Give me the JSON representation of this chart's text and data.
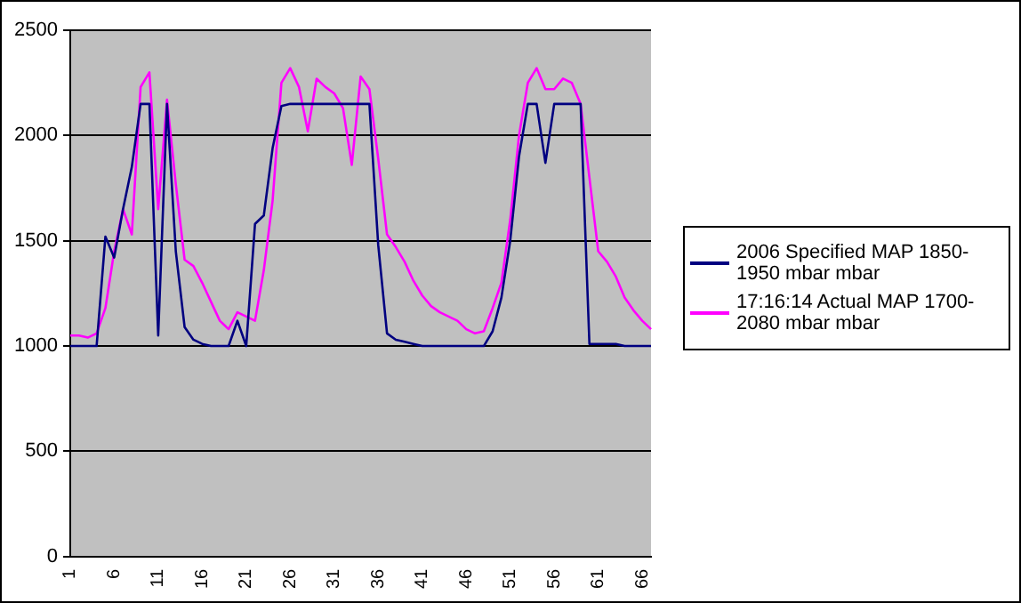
{
  "chart_data": {
    "type": "line",
    "categories": [
      "1",
      null,
      null,
      null,
      null,
      "6",
      null,
      null,
      null,
      null,
      "11",
      null,
      null,
      null,
      null,
      "16",
      null,
      null,
      null,
      null,
      "21",
      null,
      null,
      null,
      null,
      "26",
      null,
      null,
      null,
      null,
      "31",
      null,
      null,
      null,
      null,
      "36",
      null,
      null,
      null,
      null,
      "41",
      null,
      null,
      null,
      null,
      "46",
      null,
      null,
      null,
      null,
      "51",
      null,
      null,
      null,
      null,
      "56",
      null,
      null,
      null,
      null,
      "61",
      null,
      null,
      null,
      null,
      "66",
      null
    ],
    "series": [
      {
        "name": "2006 Specified MAP 1850-1950 mbar  mbar",
        "color": "#000080",
        "values": [
          1000,
          1000,
          1000,
          1000,
          1520,
          1420,
          1650,
          1850,
          2150,
          2150,
          1050,
          2150,
          1450,
          1090,
          1030,
          1010,
          1000,
          1000,
          1000,
          1120,
          1000,
          1580,
          1620,
          1940,
          2140,
          2150,
          2150,
          2150,
          2150,
          2150,
          2150,
          2150,
          2150,
          2150,
          2150,
          1480,
          1060,
          1030,
          1020,
          1010,
          1000,
          1000,
          1000,
          1000,
          1000,
          1000,
          1000,
          1000,
          1070,
          1230,
          1500,
          1900,
          2150,
          2150,
          1870,
          2150,
          2150,
          2150,
          2150,
          1010,
          1010,
          1010,
          1010,
          1000,
          1000,
          1000,
          1000
        ]
      },
      {
        "name": "17:16:14 Actual MAP 1700-2080 mbar  mbar",
        "color": "#ff00ff",
        "values": [
          1050,
          1050,
          1040,
          1060,
          1180,
          1450,
          1650,
          1530,
          2230,
          2300,
          1650,
          2170,
          1770,
          1410,
          1380,
          1300,
          1210,
          1120,
          1080,
          1160,
          1140,
          1120,
          1360,
          1690,
          2250,
          2320,
          2230,
          2020,
          2270,
          2230,
          2200,
          2130,
          1860,
          2280,
          2220,
          1890,
          1530,
          1470,
          1400,
          1310,
          1240,
          1190,
          1160,
          1140,
          1120,
          1080,
          1060,
          1070,
          1180,
          1300,
          1600,
          2000,
          2250,
          2320,
          2220,
          2220,
          2270,
          2250,
          2150,
          1800,
          1450,
          1400,
          1330,
          1230,
          1170,
          1120,
          1080
        ]
      }
    ],
    "ylim": [
      0,
      2500
    ],
    "yticks": [
      0,
      500,
      1000,
      1500,
      2000,
      2500
    ],
    "grid": "y",
    "legend": "right",
    "marker": "none",
    "line_style": "solid"
  }
}
